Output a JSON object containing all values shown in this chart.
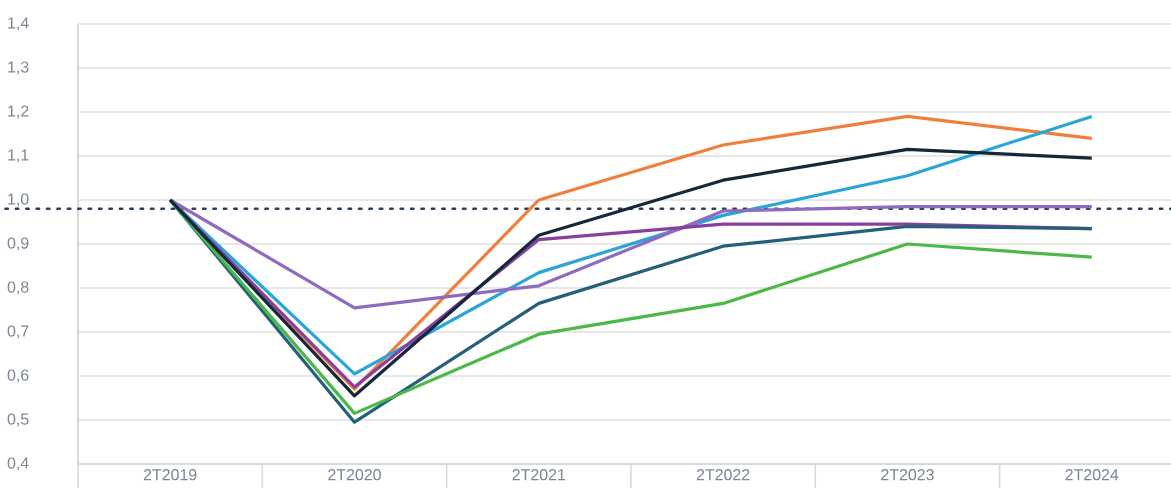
{
  "chart_data": {
    "type": "line",
    "categories": [
      "2T2019",
      "2T2020",
      "2T2021",
      "2T2022",
      "2T2023",
      "2T2024"
    ],
    "series": [
      {
        "color": "#f07f3c",
        "values": [
          1.0,
          0.57,
          1.0,
          1.125,
          1.19,
          1.14
        ]
      },
      {
        "color": "#2aa5d8",
        "values": [
          1.0,
          0.605,
          0.835,
          0.965,
          1.055,
          1.19
        ]
      },
      {
        "color": "#8e6bbf",
        "values": [
          1.0,
          0.755,
          0.805,
          0.975,
          0.985,
          0.985
        ]
      },
      {
        "color": "#8a3f9e",
        "values": [
          1.0,
          0.575,
          0.91,
          0.945,
          0.945,
          0.935
        ]
      },
      {
        "color": "#24607a",
        "values": [
          1.0,
          0.495,
          0.765,
          0.895,
          0.94,
          0.935
        ]
      },
      {
        "color": "#4cb848",
        "values": [
          1.0,
          0.515,
          0.695,
          0.765,
          0.9,
          0.87
        ]
      },
      {
        "color": "#14283a",
        "values": [
          1.0,
          0.555,
          0.92,
          1.045,
          1.115,
          1.095
        ]
      }
    ],
    "ylim": [
      0.4,
      1.4
    ],
    "yticks": [
      {
        "value": 0.4,
        "label": "0,4"
      },
      {
        "value": 0.5,
        "label": "0,5"
      },
      {
        "value": 0.6,
        "label": "0,6"
      },
      {
        "value": 0.7,
        "label": "0,7"
      },
      {
        "value": 0.8,
        "label": "0,8"
      },
      {
        "value": 0.9,
        "label": "0,9"
      },
      {
        "value": 1.0,
        "label": "1,0"
      },
      {
        "value": 1.1,
        "label": "1,1"
      },
      {
        "value": 1.2,
        "label": "1,2"
      },
      {
        "value": 1.3,
        "label": "1,3"
      },
      {
        "value": 1.4,
        "label": "1,4"
      }
    ],
    "ref_lines": [
      {
        "axis": "y",
        "value": 0.98,
        "color": "#2b3f5c",
        "line_style": "dotted"
      }
    ],
    "grid": "y",
    "marker": "none",
    "line_style": "solid"
  }
}
